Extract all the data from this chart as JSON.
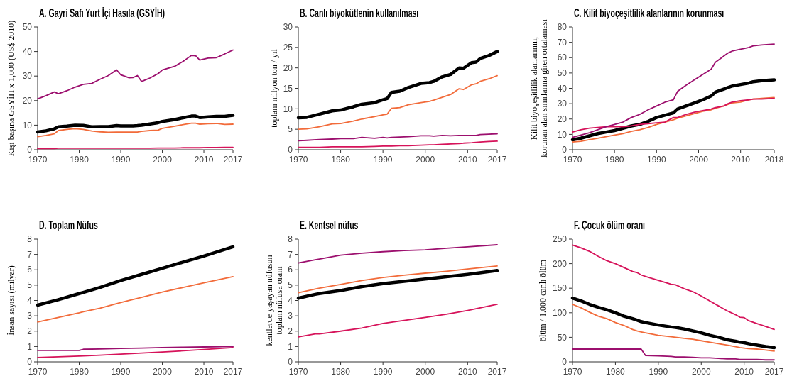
{
  "chart_data": [
    {
      "type": "line",
      "title": "A. Gayri Safı Yurt İçi Hasıla (GSYİH)",
      "ylabel": "Kişi başına GSYİH x 1,000 (US$ 2010)",
      "x": [
        1970,
        1972,
        1974,
        1975,
        1977,
        1979,
        1981,
        1983,
        1985,
        1987,
        1989,
        1990,
        1992,
        1993,
        1994,
        1995,
        1997,
        1999,
        2000,
        2003,
        2005,
        2007,
        2008,
        2009,
        2011,
        2013,
        2015,
        2017
      ],
      "xlim": [
        1970,
        2017
      ],
      "xticks": [
        1970,
        1980,
        1990,
        2000,
        2010,
        2017
      ],
      "ylim": [
        0,
        50
      ],
      "yticks": [
        0,
        10,
        20,
        30,
        40,
        50
      ],
      "series": [
        {
          "color": "#000000",
          "values": [
            7.2,
            7.7,
            8.5,
            9.3,
            9.6,
            10,
            9.9,
            9.3,
            9.4,
            9.4,
            9.8,
            9.7,
            9.7,
            9.7,
            9.8,
            10,
            10.5,
            11,
            11.5,
            12.3,
            13,
            13.7,
            13.7,
            13.1,
            13.4,
            13.6,
            13.6,
            14
          ]
        },
        {
          "color": "#f26b3a",
          "values": [
            5.3,
            5.8,
            6.5,
            7.8,
            8.3,
            8.6,
            8.3,
            7.6,
            7.3,
            7.1,
            7.2,
            7.2,
            7.2,
            7.2,
            7.2,
            7.5,
            7.8,
            8,
            8.7,
            9.6,
            10.2,
            10.8,
            10.8,
            10.4,
            10.6,
            10.7,
            10.3,
            10.4
          ]
        },
        {
          "color": "#d6135a",
          "values": [
            0.5,
            0.5,
            0.5,
            0.6,
            0.6,
            0.6,
            0.6,
            0.6,
            0.6,
            0.6,
            0.6,
            0.6,
            0.6,
            0.6,
            0.6,
            0.6,
            0.6,
            0.7,
            0.7,
            0.7,
            0.8,
            0.8,
            0.8,
            0.8,
            0.9,
            0.9,
            1,
            1
          ]
        },
        {
          "color": "#9c0f6e",
          "values": [
            20.7,
            22,
            23.5,
            22.8,
            24,
            25.5,
            26.6,
            27,
            28.7,
            30.2,
            32.5,
            30.5,
            29.3,
            29.4,
            30.2,
            27.8,
            29.2,
            31,
            32.5,
            34,
            36,
            38.4,
            38.3,
            36.5,
            37.3,
            37.5,
            39,
            40.6
          ]
        }
      ]
    },
    {
      "type": "line",
      "title": "B. Canlı biyokütlenin kullanılması",
      "ylabel": "toplam milyon ton / yıl",
      "x": [
        1970,
        1972,
        1975,
        1978,
        1980,
        1983,
        1985,
        1988,
        1990,
        1991,
        1992,
        1994,
        1996,
        1999,
        2001,
        2002,
        2004,
        2006,
        2008,
        2009,
        2011,
        2012,
        2013,
        2015,
        2017
      ],
      "xlim": [
        1970,
        2017
      ],
      "xticks": [
        1970,
        1980,
        1990,
        2000,
        2010,
        2017
      ],
      "ylim": [
        0,
        30
      ],
      "yticks": [
        0,
        5,
        10,
        15,
        20,
        25,
        30
      ],
      "series": [
        {
          "color": "#000000",
          "values": [
            7.8,
            7.9,
            8.7,
            9.5,
            9.7,
            10.5,
            11.1,
            11.5,
            12.2,
            12.5,
            14,
            14.3,
            15.2,
            16.2,
            16.4,
            16.7,
            17.8,
            18.4,
            20,
            19.9,
            21.3,
            21.4,
            22.3,
            23,
            24
          ]
        },
        {
          "color": "#f26b3a",
          "values": [
            5,
            5.1,
            5.6,
            6.3,
            6.4,
            7,
            7.5,
            8.1,
            8.5,
            8.7,
            10.1,
            10.3,
            11,
            11.5,
            11.8,
            12.1,
            12.8,
            13.5,
            14.9,
            14.7,
            15.9,
            16.1,
            16.7,
            17.3,
            18.1
          ]
        },
        {
          "color": "#d6135a",
          "values": [
            0.6,
            0.6,
            0.6,
            0.7,
            0.7,
            0.7,
            0.7,
            0.8,
            0.9,
            0.9,
            0.9,
            1.0,
            1.0,
            1.1,
            1.2,
            1.2,
            1.3,
            1.4,
            1.5,
            1.6,
            1.7,
            1.8,
            1.9,
            2.0,
            2.1
          ]
        },
        {
          "color": "#9c0f6e",
          "values": [
            2.2,
            2.3,
            2.5,
            2.6,
            2.7,
            2.7,
            3.0,
            2.8,
            3.0,
            2.9,
            3.0,
            3.1,
            3.2,
            3.4,
            3.4,
            3.3,
            3.5,
            3.4,
            3.5,
            3.5,
            3.5,
            3.5,
            3.7,
            3.8,
            3.9
          ]
        }
      ]
    },
    {
      "type": "line",
      "title": "C. Kilit biyoçeşitlilik alanlarının korunması",
      "ylabel": "Kilit biyoçeşitlilik alanlarının,\nkorunan alan sınırlarına giren ortalaması",
      "x": [
        1970,
        1972,
        1974,
        1976,
        1978,
        1980,
        1982,
        1984,
        1986,
        1988,
        1990,
        1992,
        1994,
        1995,
        1997,
        1999,
        2001,
        2003,
        2004,
        2006,
        2007,
        2008,
        2010,
        2012,
        2013,
        2015,
        2018
      ],
      "xlim": [
        1970,
        2018
      ],
      "xticks": [
        1970,
        1980,
        1990,
        2000,
        2010,
        2018
      ],
      "ylim": [
        0,
        80
      ],
      "yticks": [
        0,
        10,
        20,
        30,
        40,
        50,
        60,
        70,
        80
      ],
      "series": [
        {
          "color": "#000000",
          "values": [
            6.5,
            7.5,
            9,
            10.5,
            11.5,
            12.5,
            14,
            15.5,
            16.5,
            18.5,
            21,
            22.5,
            24,
            26.5,
            28.5,
            30.5,
            32.5,
            35,
            37.5,
            39.5,
            40.5,
            41.5,
            42.5,
            43.5,
            44.3,
            45,
            45.5
          ]
        },
        {
          "color": "#f26b3a",
          "values": [
            5,
            5.5,
            6.5,
            7.5,
            8.5,
            9.5,
            10.5,
            12,
            13,
            14.5,
            16.5,
            18,
            19.5,
            20.5,
            22,
            23.5,
            25,
            26,
            27,
            28.5,
            29.5,
            30.5,
            31,
            32.5,
            33,
            33.5,
            34
          ]
        },
        {
          "color": "#d6135a",
          "values": [
            11.5,
            13,
            14,
            14.5,
            15,
            15,
            15,
            15.5,
            16.5,
            17,
            17.5,
            18,
            21,
            21,
            23,
            24.5,
            25.5,
            26.5,
            27.5,
            28.5,
            30,
            31,
            32,
            32.5,
            33,
            33,
            33.5
          ]
        },
        {
          "color": "#9c0f6e",
          "values": [
            8,
            9.5,
            11,
            13,
            15,
            16.5,
            18,
            21,
            23,
            26,
            28.5,
            31,
            32.5,
            38,
            42,
            45.5,
            49,
            52.5,
            57,
            61,
            63,
            64.3,
            65.5,
            66.7,
            67.7,
            68.3,
            68.8
          ]
        }
      ]
    },
    {
      "type": "line",
      "title": "D. Toplam Nüfus",
      "ylabel": "İnsan sayısı  (milyar)",
      "x": [
        1970,
        1975,
        1980,
        1981,
        1985,
        1990,
        1995,
        2000,
        2005,
        2010,
        2017
      ],
      "xlim": [
        1970,
        2017
      ],
      "xticks": [
        1970,
        1980,
        1990,
        2000,
        2010,
        2017
      ],
      "ylim": [
        0,
        8
      ],
      "yticks": [
        0,
        1,
        2,
        3,
        4,
        5,
        6,
        7,
        8
      ],
      "series": [
        {
          "color": "#000000",
          "values": [
            3.7,
            4.05,
            4.45,
            4.53,
            4.85,
            5.3,
            5.7,
            6.1,
            6.5,
            6.9,
            7.5
          ]
        },
        {
          "color": "#f26b3a",
          "values": [
            2.6,
            2.9,
            3.2,
            3.27,
            3.5,
            3.87,
            4.2,
            4.55,
            4.85,
            5.15,
            5.55
          ]
        },
        {
          "color": "#d6135a",
          "values": [
            0.28,
            0.33,
            0.38,
            0.39,
            0.43,
            0.5,
            0.57,
            0.64,
            0.72,
            0.8,
            0.93
          ]
        },
        {
          "color": "#9c0f6e",
          "values": [
            0.75,
            0.75,
            0.75,
            0.82,
            0.84,
            0.87,
            0.9,
            0.93,
            0.95,
            0.97,
            1.0
          ]
        }
      ]
    },
    {
      "type": "line",
      "title": "E. Kentsel nüfus",
      "ylabel": "kentlerde yaşayan nüfusun\ntoplam nüfusa oranı",
      "x": [
        1970,
        1974,
        1975,
        1980,
        1985,
        1990,
        1995,
        2000,
        2005,
        2010,
        2017
      ],
      "xlim": [
        1970,
        2017
      ],
      "xticks": [
        1970,
        1980,
        1990,
        2000,
        2010,
        2017
      ],
      "ylim": [
        0,
        8
      ],
      "yticks": [
        0,
        1,
        2,
        3,
        4,
        5,
        6,
        7,
        8
      ],
      "series": [
        {
          "color": "#000000",
          "values": [
            4.15,
            4.4,
            4.45,
            4.65,
            4.9,
            5.1,
            5.25,
            5.4,
            5.55,
            5.7,
            5.95
          ]
        },
        {
          "color": "#f26b3a",
          "values": [
            4.5,
            4.75,
            4.8,
            5.05,
            5.3,
            5.5,
            5.65,
            5.78,
            5.9,
            6.05,
            6.25
          ]
        },
        {
          "color": "#d6135a",
          "values": [
            1.62,
            1.82,
            1.82,
            2.0,
            2.2,
            2.5,
            2.7,
            2.9,
            3.1,
            3.35,
            3.75
          ]
        },
        {
          "color": "#9c0f6e",
          "values": [
            6.45,
            6.65,
            6.7,
            6.95,
            7.08,
            7.18,
            7.25,
            7.3,
            7.4,
            7.5,
            7.63
          ]
        }
      ]
    },
    {
      "type": "line",
      "title": "F. Çocuk ölüm oranı",
      "ylabel": "ölüm  / 1.000 canlı ölüm",
      "x": [
        1970,
        1972,
        1974,
        1976,
        1978,
        1980,
        1982,
        1984,
        1985,
        1986,
        1987,
        1990,
        1993,
        1994,
        1996,
        1998,
        2000,
        2002,
        2004,
        2006,
        2008,
        2009,
        2010,
        2011,
        2013,
        2015,
        2017
      ],
      "xlim": [
        1970,
        2017
      ],
      "xticks": [
        1970,
        1980,
        1990,
        2000,
        2010,
        2017
      ],
      "ylim": [
        0,
        250
      ],
      "yticks": [
        0,
        50,
        100,
        150,
        200,
        250
      ],
      "series": [
        {
          "color": "#000000",
          "values": [
            130,
            124,
            117,
            111,
            106,
            100,
            93,
            88,
            85,
            82,
            80,
            75,
            71,
            70,
            67,
            63,
            59,
            54,
            50,
            45,
            42,
            40,
            39,
            37,
            34,
            31,
            29
          ]
        },
        {
          "color": "#f26b3a",
          "values": [
            117,
            110,
            101,
            93,
            88,
            80,
            74,
            66,
            63,
            61,
            59,
            54,
            51,
            50,
            48,
            46,
            43,
            40,
            37,
            34,
            31,
            29,
            28,
            27,
            26,
            24,
            22
          ]
        },
        {
          "color": "#d6135a",
          "values": [
            238,
            232,
            225,
            215,
            206,
            200,
            192,
            184,
            182,
            177,
            174,
            166,
            158,
            157,
            149,
            143,
            134,
            124,
            114,
            104,
            96,
            91,
            90,
            84,
            78,
            72,
            66
          ]
        },
        {
          "color": "#9c0f6e",
          "values": [
            26,
            26,
            26,
            26,
            26,
            26,
            26,
            26,
            26,
            26,
            13,
            12,
            11,
            10,
            10,
            9,
            8,
            8,
            7,
            6,
            6,
            5,
            5,
            5,
            5,
            4,
            4
          ]
        }
      ]
    }
  ]
}
